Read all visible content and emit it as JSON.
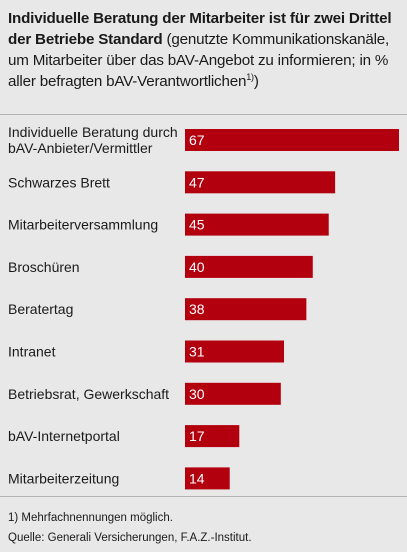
{
  "title": {
    "bold": "Individuelle Beratung der Mitarbeiter ist für zwei Drittel der Betriebe Standard",
    "normal": " (genutzte Kommunikationskanäle, um Mitarbeiter über das bAV-Angebot zu informieren; in % aller befragten bAV-Verantwortlichen",
    "footnote_marker": "1)",
    "closing": ")"
  },
  "chart_data": {
    "type": "bar",
    "orientation": "horizontal",
    "categories": [
      "Individuelle Beratung durch bAV-Anbieter/Vermittler",
      "Schwarzes Brett",
      "Mitarbeiterversammlung",
      "Broschüren",
      "Beratertag",
      "Intranet",
      "Betriebsrat, Gewerkschaft",
      "bAV-Internetportal",
      "Mitarbeiterzeitung"
    ],
    "category_lines": [
      [
        "Individuelle Beratung durch",
        "bAV-Anbieter/Vermittler"
      ],
      [
        "Schwarzes Brett"
      ],
      [
        "Mitarbeiterversammlung"
      ],
      [
        "Broschüren"
      ],
      [
        "Beratertag"
      ],
      [
        "Intranet"
      ],
      [
        "Betriebsrat, Gewerkschaft"
      ],
      [
        "bAV-Internetportal"
      ],
      [
        "Mitarbeiterzeitung"
      ]
    ],
    "values": [
      67,
      47,
      45,
      40,
      38,
      31,
      30,
      17,
      14
    ],
    "xlim": [
      0,
      67
    ],
    "bar_color": "#b3000e",
    "grid": false,
    "legend": "none"
  },
  "footnotes": {
    "note": "1)  Mehrfachnennungen möglich.",
    "source": "Quelle: Generali Versicherungen, F.A.Z.-Institut."
  },
  "colors": {
    "background": "#e9e8e8",
    "rule": "#b4b4b4"
  }
}
